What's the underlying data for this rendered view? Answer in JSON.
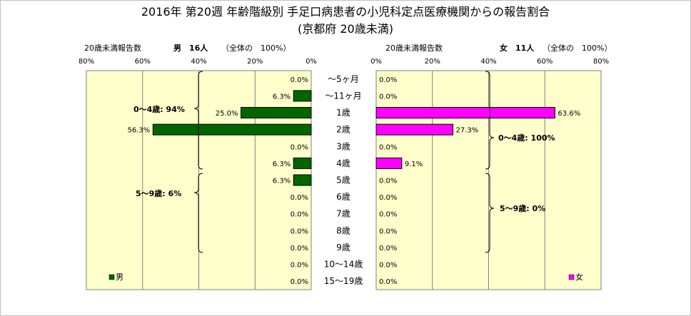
{
  "chart_data": {
    "type": "bar",
    "title": "2016年 第20週 年齢階級別 手足口病患者の小児科定点医療機関からの報告割合",
    "subtitle": "(京都府 20歳未満)",
    "categories": [
      "～5ヶ月",
      "～11ヶ月",
      "1歳",
      "2歳",
      "3歳",
      "4歳",
      "5歳",
      "6歳",
      "7歳",
      "8歳",
      "9歳",
      "10～14歳",
      "15～19歳"
    ],
    "panels": [
      {
        "side": "left",
        "caption": "20歳未満報告数",
        "count_label": "男　16人",
        "total_label": "（全体の　100%）",
        "series": [
          {
            "name": "男",
            "color": "#006600",
            "values": [
              0.0,
              6.3,
              25.0,
              56.3,
              0.0,
              6.3,
              6.3,
              0.0,
              0.0,
              0.0,
              0.0,
              0.0,
              0.0
            ]
          }
        ],
        "xlim": [
          0,
          80
        ],
        "ticks": [
          "80%",
          "60%",
          "40%",
          "20%",
          "0%"
        ],
        "annotations": [
          "0～4歳: 94%",
          "5～9歳: 6%"
        ],
        "legend_position": "bottom-left"
      },
      {
        "side": "right",
        "caption": "20歳未満報告数",
        "count_label": "女　11人",
        "total_label": "（全体の　100%）",
        "series": [
          {
            "name": "女",
            "color": "#ff00ff",
            "values": [
              0.0,
              0.0,
              63.6,
              27.3,
              0.0,
              9.1,
              0.0,
              0.0,
              0.0,
              0.0,
              0.0,
              0.0,
              0.0
            ]
          }
        ],
        "xlim": [
          0,
          80
        ],
        "ticks": [
          "0%",
          "20%",
          "40%",
          "60%",
          "80%"
        ],
        "annotations": [
          "0～4歳: 100%",
          "5～9歳: 0%"
        ],
        "legend_position": "bottom-right"
      }
    ],
    "grid": true,
    "plot_background": "#ffffcc"
  }
}
